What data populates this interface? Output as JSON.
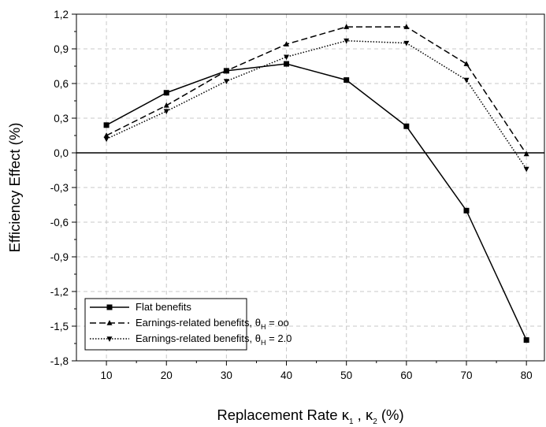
{
  "chart_data": {
    "type": "line",
    "x": [
      10,
      20,
      30,
      40,
      50,
      60,
      70,
      80
    ],
    "x_ticks": [
      10,
      20,
      30,
      40,
      50,
      60,
      70,
      80
    ],
    "x_tick_labels": [
      "10",
      "20",
      "30",
      "40",
      "50",
      "60",
      "70",
      "80"
    ],
    "xlim": [
      5,
      83
    ],
    "xlabel": {
      "prefix": "Replacement Rate ",
      "kappa1": "κ",
      "sub1": "1",
      "sep": " , ",
      "kappa2": "κ",
      "sub2": "2",
      "suffix": " (%)"
    },
    "ylabel": "Efficiency Effect (%)",
    "ylim": [
      -1.8,
      1.2
    ],
    "y_ticks": [
      1.2,
      0.9,
      0.6,
      0.3,
      0.0,
      -0.3,
      -0.6,
      -0.9,
      -1.2,
      -1.5,
      -1.8
    ],
    "y_tick_labels": [
      "1,2",
      "0,9",
      "0,6",
      "0,3",
      "0,0",
      "-0,3",
      "-0,6",
      "-0,9",
      "-1,2",
      "-1,5",
      "-1,8"
    ],
    "grid": true,
    "legend_position": "bottom-left",
    "series": [
      {
        "name": "Flat benefits",
        "marker": "square",
        "line_style": "solid",
        "color": "#000000",
        "values": [
          0.24,
          0.52,
          0.71,
          0.77,
          0.63,
          0.23,
          -0.5,
          -1.62
        ]
      },
      {
        "name_prefix": "Earnings-related benefits, ",
        "name_symbol": "θ",
        "name_sub": "H",
        "name_suffix": " = oo",
        "marker": "triangle-up",
        "line_style": "dashed",
        "color": "#000000",
        "values": [
          0.15,
          0.41,
          0.71,
          0.94,
          1.09,
          1.09,
          0.77,
          -0.01
        ]
      },
      {
        "name_prefix": "Earnings-related benefits, ",
        "name_symbol": "θ",
        "name_sub": "H",
        "name_suffix": " = 2.0",
        "marker": "triangle-down",
        "line_style": "dotted",
        "color": "#000000",
        "values": [
          0.12,
          0.36,
          0.62,
          0.83,
          0.97,
          0.95,
          0.63,
          -0.14
        ]
      }
    ]
  }
}
